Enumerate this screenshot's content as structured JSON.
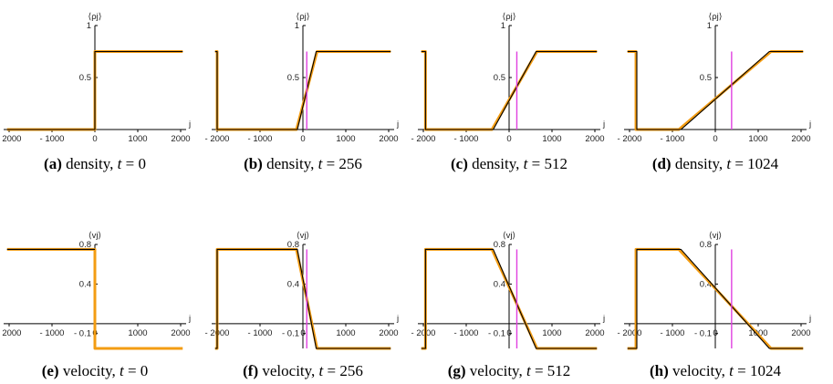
{
  "chart_data": [
    {
      "type": "line",
      "caption": {
        "letter": "(a)",
        "quantity": "density,",
        "time_symbol": "t",
        "time_value": "= 0"
      },
      "ylabel": "⟨ρj⟩",
      "xlabel": "j",
      "xlim": [
        -2000,
        2000
      ],
      "ylim": [
        0,
        1
      ],
      "xticks": [
        "- 2000",
        "- 1000",
        "0",
        "1000",
        "2000"
      ],
      "yticks": [
        {
          "v": 1,
          "label": "1"
        },
        {
          "v": 0.5,
          "label": "0.5"
        }
      ],
      "series": [
        {
          "role": "simulation",
          "color": "#f39c12",
          "x": [
            -2048,
            0,
            0,
            2048
          ],
          "y": [
            0,
            0,
            0.75,
            0.75
          ]
        },
        {
          "role": "theory",
          "color": "#000000",
          "x": [
            -2048,
            0,
            0,
            2048
          ],
          "y": [
            0,
            0,
            0.75,
            0.75
          ]
        }
      ],
      "marker_x": null
    },
    {
      "type": "line",
      "caption": {
        "letter": "(b)",
        "quantity": "density,",
        "time_symbol": "t",
        "time_value": "= 256"
      },
      "ylabel": "⟨ρj⟩",
      "xlabel": "j",
      "xlim": [
        -2000,
        2000
      ],
      "ylim": [
        0,
        1
      ],
      "xticks": [
        "- 2000",
        "- 1000",
        "0",
        "1000",
        "2000"
      ],
      "yticks": [
        {
          "v": 1,
          "label": "1"
        },
        {
          "v": 0.5,
          "label": "0.5"
        }
      ],
      "series": [
        {
          "role": "simulation",
          "color": "#f39c12",
          "x": [
            -2048,
            -2000,
            -2000,
            -150,
            330,
            2048
          ],
          "y": [
            0.75,
            0.75,
            0,
            0,
            0.75,
            0.75
          ]
        },
        {
          "role": "theory",
          "color": "#000000",
          "x": [
            -2048,
            -2000,
            -2000,
            -130,
            310,
            2048
          ],
          "y": [
            0.75,
            0.75,
            0,
            0,
            0.75,
            0.75
          ]
        }
      ],
      "marker_x": 90
    },
    {
      "type": "line",
      "caption": {
        "letter": "(c)",
        "quantity": "density,",
        "time_symbol": "t",
        "time_value": "= 512"
      },
      "ylabel": "⟨ρj⟩",
      "xlabel": "j",
      "xlim": [
        -2000,
        2000
      ],
      "ylim": [
        0,
        1
      ],
      "xticks": [
        "- 2000",
        "- 1000",
        "0",
        "1000",
        "2000"
      ],
      "yticks": [
        {
          "v": 1,
          "label": "1"
        },
        {
          "v": 0.5,
          "label": "0.5"
        }
      ],
      "series": [
        {
          "role": "simulation",
          "color": "#f39c12",
          "x": [
            -2048,
            -1950,
            -1950,
            -400,
            650,
            2048
          ],
          "y": [
            0.75,
            0.75,
            0,
            0,
            0.75,
            0.75
          ]
        },
        {
          "role": "theory",
          "color": "#000000",
          "x": [
            -2048,
            -1950,
            -1950,
            -370,
            630,
            2048
          ],
          "y": [
            0.75,
            0.75,
            0,
            0,
            0.75,
            0.75
          ]
        }
      ],
      "marker_x": 180
    },
    {
      "type": "line",
      "caption": {
        "letter": "(d)",
        "quantity": "density,",
        "time_symbol": "t",
        "time_value": "= 1024"
      },
      "ylabel": "⟨ρj⟩",
      "xlabel": "j",
      "xlim": [
        -2000,
        2000
      ],
      "ylim": [
        0,
        1
      ],
      "xticks": [
        "- 2000",
        "- 1000",
        "0",
        "1000",
        "2000"
      ],
      "yticks": [
        {
          "v": 1,
          "label": "1"
        },
        {
          "v": 0.5,
          "label": "0.5"
        }
      ],
      "series": [
        {
          "role": "simulation",
          "color": "#f39c12",
          "x": [
            -2048,
            -1850,
            -1850,
            -850,
            1300,
            2048
          ],
          "y": [
            0.75,
            0.75,
            0,
            0,
            0.75,
            0.75
          ]
        },
        {
          "role": "theory",
          "color": "#000000",
          "x": [
            -2048,
            -1830,
            -1830,
            -800,
            1260,
            2048
          ],
          "y": [
            0.75,
            0.75,
            0,
            0,
            0.75,
            0.75
          ]
        }
      ],
      "marker_x": 380
    },
    {
      "type": "line",
      "caption": {
        "letter": "(e)",
        "quantity": "velocity,",
        "time_symbol": "t",
        "time_value": "= 0"
      },
      "ylabel": "⟨vj⟩",
      "xlabel": "j",
      "xlim": [
        -2000,
        2000
      ],
      "ylim": [
        -0.25,
        0.8
      ],
      "xticks": [
        "- 2000",
        "- 1000",
        "0",
        "1000",
        "2000"
      ],
      "yticks": [
        {
          "v": 0.8,
          "label": "0.8"
        },
        {
          "v": 0.4,
          "label": "0.4"
        },
        {
          "v": -0.1,
          "label": "- 0.1"
        }
      ],
      "series": [
        {
          "role": "simulation",
          "color": "#f39c12",
          "x": [
            -2048,
            0,
            0,
            2048
          ],
          "y": [
            0.75,
            0.75,
            -0.25,
            -0.25
          ]
        },
        {
          "role": "theory",
          "color": "#000000",
          "x": [
            -2048,
            0
          ],
          "y": [
            0.75,
            0.75
          ]
        }
      ],
      "marker_x": null
    },
    {
      "type": "line",
      "caption": {
        "letter": "(f)",
        "quantity": "velocity,",
        "time_symbol": "t",
        "time_value": "= 256"
      },
      "ylabel": "⟨vj⟩",
      "xlabel": "j",
      "xlim": [
        -2000,
        2000
      ],
      "ylim": [
        -0.25,
        0.8
      ],
      "xticks": [
        "- 2000",
        "- 1000",
        "0",
        "1000",
        "2000"
      ],
      "yticks": [
        {
          "v": 0.8,
          "label": "0.8"
        },
        {
          "v": 0.4,
          "label": "0.4"
        },
        {
          "v": -0.1,
          "label": "- 0.1"
        }
      ],
      "series": [
        {
          "role": "simulation",
          "color": "#f39c12",
          "x": [
            -2048,
            -2000,
            -2000,
            -150,
            330,
            2048
          ],
          "y": [
            -0.25,
            -0.25,
            0.75,
            0.75,
            -0.25,
            -0.25
          ]
        },
        {
          "role": "theory",
          "color": "#000000",
          "x": [
            -2048,
            -2000,
            -2000,
            -130,
            310,
            2048
          ],
          "y": [
            -0.25,
            -0.25,
            0.75,
            0.75,
            -0.25,
            -0.25
          ]
        }
      ],
      "marker_x": 90
    },
    {
      "type": "line",
      "caption": {
        "letter": "(g)",
        "quantity": "velocity,",
        "time_symbol": "t",
        "time_value": "= 512"
      },
      "ylabel": "⟨vj⟩",
      "xlabel": "j",
      "xlim": [
        -2000,
        2000
      ],
      "ylim": [
        -0.25,
        0.8
      ],
      "xticks": [
        "- 2000",
        "- 1000",
        "0",
        "1000",
        "2000"
      ],
      "yticks": [
        {
          "v": 0.8,
          "label": "0.8"
        },
        {
          "v": 0.4,
          "label": "0.4"
        },
        {
          "v": -0.1,
          "label": "- 0.1"
        }
      ],
      "series": [
        {
          "role": "simulation",
          "color": "#f39c12",
          "x": [
            -2048,
            -1950,
            -1950,
            -400,
            650,
            2048
          ],
          "y": [
            -0.25,
            -0.25,
            0.75,
            0.75,
            -0.25,
            -0.25
          ]
        },
        {
          "role": "theory",
          "color": "#000000",
          "x": [
            -2048,
            -1950,
            -1950,
            -370,
            630,
            2048
          ],
          "y": [
            -0.25,
            -0.25,
            0.75,
            0.75,
            -0.25,
            -0.25
          ]
        }
      ],
      "marker_x": 180
    },
    {
      "type": "line",
      "caption": {
        "letter": "(h)",
        "quantity": "velocity,",
        "time_symbol": "t",
        "time_value": "= 1024"
      },
      "ylabel": "⟨vj⟩",
      "xlabel": "j",
      "xlim": [
        -2000,
        2000
      ],
      "ylim": [
        -0.25,
        0.8
      ],
      "xticks": [
        "- 2000",
        "- 1000",
        "0",
        "1000",
        "2000"
      ],
      "yticks": [
        {
          "v": 0.8,
          "label": "0.8"
        },
        {
          "v": 0.4,
          "label": "0.4"
        },
        {
          "v": -0.1,
          "label": "- 0.1"
        }
      ],
      "series": [
        {
          "role": "simulation",
          "color": "#f39c12",
          "x": [
            -2048,
            -1850,
            -1850,
            -850,
            1300,
            2048
          ],
          "y": [
            -0.25,
            -0.25,
            0.75,
            0.75,
            -0.25,
            -0.25
          ]
        },
        {
          "role": "theory",
          "color": "#000000",
          "x": [
            -2048,
            -1830,
            -1830,
            -800,
            1260,
            2048
          ],
          "y": [
            -0.25,
            -0.25,
            0.75,
            0.75,
            -0.25,
            -0.25
          ]
        }
      ],
      "marker_x": 380
    }
  ],
  "colors": {
    "simulation": "#f39c12",
    "theory": "#000000",
    "marker": "#e040e0",
    "axis": "#000000"
  }
}
